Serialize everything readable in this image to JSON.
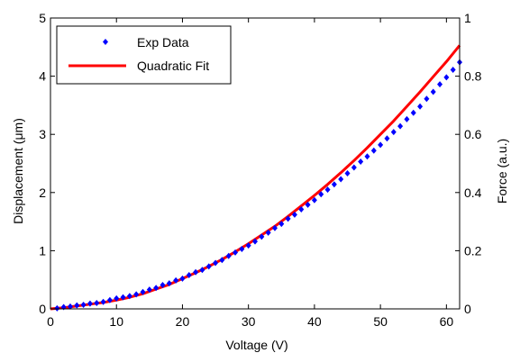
{
  "chart_data": {
    "type": "scatter",
    "xlabel": "Voltage (V)",
    "ylabel": "Displacement (",
    "ylabel_mu": "μ",
    "ylabel_unit_tail": "m)",
    "y2label": "Force (a.u.)",
    "xlim": [
      0,
      62
    ],
    "ylim": [
      0,
      5
    ],
    "y2lim": [
      0,
      1
    ],
    "xticks": [
      0,
      10,
      20,
      30,
      40,
      50,
      60
    ],
    "yticks": [
      0,
      1,
      2,
      3,
      4,
      5
    ],
    "y2ticks": [
      0,
      0.2,
      0.4,
      0.6,
      0.8,
      1
    ],
    "legend_position": "top-left",
    "grid": false,
    "series": [
      {
        "name": "Exp Data",
        "kind": "markers",
        "color": "#0000ff",
        "x": [
          1,
          2,
          3,
          4,
          5,
          6,
          7,
          8,
          9,
          10,
          11,
          12,
          13,
          14,
          15,
          16,
          17,
          18,
          19,
          20,
          21,
          22,
          23,
          24,
          25,
          26,
          27,
          28,
          29,
          30,
          31,
          32,
          33,
          34,
          35,
          36,
          37,
          38,
          39,
          40,
          41,
          42,
          43,
          44,
          45,
          46,
          47,
          48,
          49,
          50,
          51,
          52,
          53,
          54,
          55,
          56,
          57,
          58,
          59,
          60,
          61,
          62
        ],
        "y": [
          0.01,
          0.03,
          0.04,
          0.06,
          0.07,
          0.09,
          0.1,
          0.12,
          0.15,
          0.18,
          0.2,
          0.22,
          0.25,
          0.29,
          0.33,
          0.36,
          0.41,
          0.44,
          0.49,
          0.52,
          0.58,
          0.63,
          0.67,
          0.73,
          0.79,
          0.84,
          0.91,
          0.97,
          1.03,
          1.09,
          1.16,
          1.24,
          1.31,
          1.39,
          1.46,
          1.55,
          1.62,
          1.71,
          1.79,
          1.87,
          1.97,
          2.05,
          2.14,
          2.23,
          2.33,
          2.43,
          2.53,
          2.62,
          2.72,
          2.82,
          2.93,
          3.04,
          3.14,
          3.26,
          3.37,
          3.48,
          3.61,
          3.73,
          3.86,
          3.98,
          4.11,
          4.24
        ]
      },
      {
        "name": "Quadratic Fit",
        "kind": "line",
        "color": "#ff0000",
        "x": [
          0,
          2,
          4,
          6,
          8,
          10,
          12,
          14,
          16,
          18,
          20,
          22,
          24,
          26,
          28,
          30,
          32,
          34,
          36,
          38,
          40,
          42,
          44,
          46,
          48,
          50,
          52,
          54,
          56,
          58,
          60,
          62
        ],
        "y": [
          0.0,
          0.02,
          0.05,
          0.08,
          0.11,
          0.15,
          0.2,
          0.26,
          0.34,
          0.42,
          0.52,
          0.62,
          0.73,
          0.85,
          0.98,
          1.12,
          1.27,
          1.42,
          1.59,
          1.77,
          1.95,
          2.14,
          2.34,
          2.55,
          2.77,
          3.0,
          3.23,
          3.48,
          3.73,
          3.99,
          4.25,
          4.53
        ]
      }
    ]
  }
}
